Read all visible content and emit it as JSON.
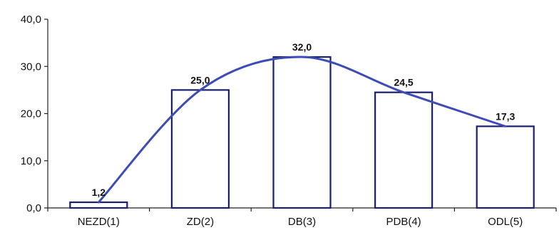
{
  "colors": {
    "bar_stroke": "#1a1f6e",
    "bar_fill": "#ffffff",
    "curve": "#3d4db7",
    "axis": "#222222",
    "text": "#111111"
  },
  "chart_data": {
    "type": "bar",
    "categories": [
      "NEZD(1)",
      "ZD(2)",
      "DB(3)",
      "PDB(4)",
      "ODL(5)"
    ],
    "values": [
      1.2,
      25.0,
      32.0,
      24.5,
      17.3
    ],
    "value_labels": [
      "1,2",
      "25,0",
      "32,0",
      "24,5",
      "17,3"
    ],
    "yticks": [
      0,
      10,
      20,
      30,
      40
    ],
    "ytick_labels": [
      "0,0",
      "10,0",
      "20,0",
      "30,0",
      "40,0"
    ],
    "ylim": [
      0,
      40
    ],
    "grid": false,
    "legend": "none",
    "overlay": "smooth curve through bar tops",
    "title": "",
    "xlabel": "",
    "ylabel": ""
  }
}
